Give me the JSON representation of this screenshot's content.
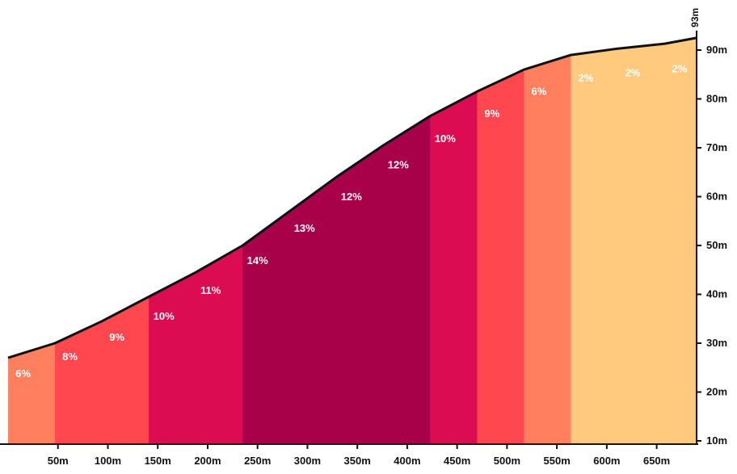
{
  "chart_data": {
    "type": "area",
    "title": "",
    "xlabel": "",
    "ylabel": "",
    "xlim": [
      0,
      690
    ],
    "ylim": [
      10,
      93
    ],
    "x_ticks": [
      {
        "value": 50,
        "label": "50m"
      },
      {
        "value": 100,
        "label": "100m"
      },
      {
        "value": 150,
        "label": "150m"
      },
      {
        "value": 200,
        "label": "200m"
      },
      {
        "value": 250,
        "label": "250m"
      },
      {
        "value": 300,
        "label": "300m"
      },
      {
        "value": 350,
        "label": "350m"
      },
      {
        "value": 400,
        "label": "400m"
      },
      {
        "value": 450,
        "label": "450m"
      },
      {
        "value": 500,
        "label": "500m"
      },
      {
        "value": 550,
        "label": "550m"
      },
      {
        "value": 600,
        "label": "600m"
      },
      {
        "value": 650,
        "label": "650m"
      }
    ],
    "y_ticks": [
      {
        "value": 10,
        "label": "10m"
      },
      {
        "value": 20,
        "label": "20m"
      },
      {
        "value": 30,
        "label": "30m"
      },
      {
        "value": 40,
        "label": "40m"
      },
      {
        "value": 50,
        "label": "50m"
      },
      {
        "value": 60,
        "label": "60m"
      },
      {
        "value": 70,
        "label": "70m"
      },
      {
        "value": 80,
        "label": "80m"
      },
      {
        "value": 90,
        "label": "90m"
      }
    ],
    "max_elevation_label": "93m",
    "segments": [
      {
        "start": 0,
        "end": 47,
        "grade": "6%",
        "color": "#ff7f5e"
      },
      {
        "start": 47,
        "end": 141,
        "grade": "8%",
        "color": "#ff4750"
      },
      {
        "start": 141,
        "end": 141,
        "grade": "9%",
        "color": "#ff4750"
      },
      {
        "start": 141,
        "end": 235,
        "grade": "10%",
        "color": "#dc0c52"
      },
      {
        "start": 235,
        "end": 235,
        "grade": "11%",
        "color": "#dc0c52"
      },
      {
        "start": 235,
        "end": 423,
        "grade": "14%",
        "color": "#a9004a"
      },
      {
        "start": 423,
        "end": 470,
        "grade": "10%",
        "color": "#dc0c52"
      },
      {
        "start": 470,
        "end": 517,
        "grade": "9%",
        "color": "#ff4750"
      },
      {
        "start": 517,
        "end": 564,
        "grade": "6%",
        "color": "#ff7f5e"
      },
      {
        "start": 564,
        "end": 690,
        "grade": "2%",
        "color": "#ffc97e"
      }
    ],
    "bands": [
      {
        "start": 0,
        "end": 47,
        "color": "#ff7f5e"
      },
      {
        "start": 47,
        "end": 141,
        "color": "#ff4750"
      },
      {
        "start": 141,
        "end": 235,
        "color": "#dc0c52"
      },
      {
        "start": 235,
        "end": 423,
        "color": "#a9004a"
      },
      {
        "start": 423,
        "end": 470,
        "color": "#dc0c52"
      },
      {
        "start": 470,
        "end": 517,
        "color": "#ff4750"
      },
      {
        "start": 517,
        "end": 564,
        "color": "#ff7f5e"
      },
      {
        "start": 564,
        "end": 690,
        "color": "#ffc97e"
      }
    ],
    "grade_labels": [
      {
        "x": 15,
        "y": 26.4,
        "label": "6%"
      },
      {
        "x": 62,
        "y": 29.8,
        "label": "8%"
      },
      {
        "x": 109,
        "y": 33.8,
        "label": "9%"
      },
      {
        "x": 156,
        "y": 38.1,
        "label": "10%"
      },
      {
        "x": 203,
        "y": 43.4,
        "label": "11%"
      },
      {
        "x": 250,
        "y": 49.5,
        "label": "14%"
      },
      {
        "x": 297,
        "y": 56.1,
        "label": "13%"
      },
      {
        "x": 344,
        "y": 62.6,
        "label": "12%"
      },
      {
        "x": 391,
        "y": 69.1,
        "label": "12%"
      },
      {
        "x": 438,
        "y": 74.5,
        "label": "10%"
      },
      {
        "x": 485,
        "y": 79.6,
        "label": "9%"
      },
      {
        "x": 532,
        "y": 84.1,
        "label": "6%"
      },
      {
        "x": 579,
        "y": 86.9,
        "label": "2%"
      },
      {
        "x": 626,
        "y": 87.9,
        "label": "2%"
      },
      {
        "x": 673,
        "y": 88.8,
        "label": "2%"
      }
    ],
    "profile": [
      {
        "x": 0,
        "y": 27.0
      },
      {
        "x": 47,
        "y": 30.0
      },
      {
        "x": 94,
        "y": 34.5
      },
      {
        "x": 141,
        "y": 39.5
      },
      {
        "x": 188,
        "y": 44.5
      },
      {
        "x": 235,
        "y": 50.0
      },
      {
        "x": 282,
        "y": 57.0
      },
      {
        "x": 329,
        "y": 64.0
      },
      {
        "x": 376,
        "y": 70.5
      },
      {
        "x": 423,
        "y": 76.5
      },
      {
        "x": 470,
        "y": 81.5
      },
      {
        "x": 517,
        "y": 86.0
      },
      {
        "x": 564,
        "y": 89.0
      },
      {
        "x": 611,
        "y": 90.3
      },
      {
        "x": 658,
        "y": 91.3
      },
      {
        "x": 690,
        "y": 92.5
      }
    ]
  }
}
